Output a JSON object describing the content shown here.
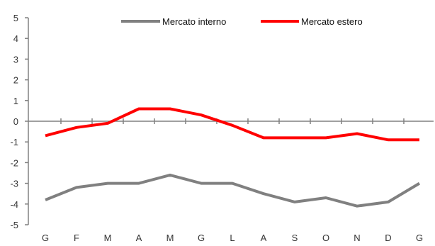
{
  "chart_data": {
    "type": "line",
    "categories": [
      "G",
      "F",
      "M",
      "A",
      "M",
      "G",
      "L",
      "A",
      "S",
      "O",
      "N",
      "D",
      "G"
    ],
    "series": [
      {
        "name": "Mercato interno",
        "color": "#808080",
        "values": [
          -3.8,
          -3.2,
          -3.0,
          -3.0,
          -2.6,
          -3.0,
          -3.0,
          -3.5,
          -3.9,
          -3.7,
          -4.1,
          -3.9,
          -3.0
        ]
      },
      {
        "name": "Mercato estero",
        "color": "#ff0000",
        "values": [
          -0.7,
          -0.3,
          -0.1,
          0.6,
          0.6,
          0.3,
          -0.2,
          -0.8,
          -0.8,
          -0.8,
          -0.6,
          -0.9,
          -0.9
        ]
      }
    ],
    "ylim": [
      -5,
      5
    ],
    "yticks": [
      "5",
      "4",
      "3",
      "2",
      "1",
      "0",
      "-1",
      "-2",
      "-3",
      "-4",
      "-5"
    ],
    "grid": false,
    "legend": "top",
    "title": "",
    "xlabel": "",
    "ylabel": ""
  }
}
